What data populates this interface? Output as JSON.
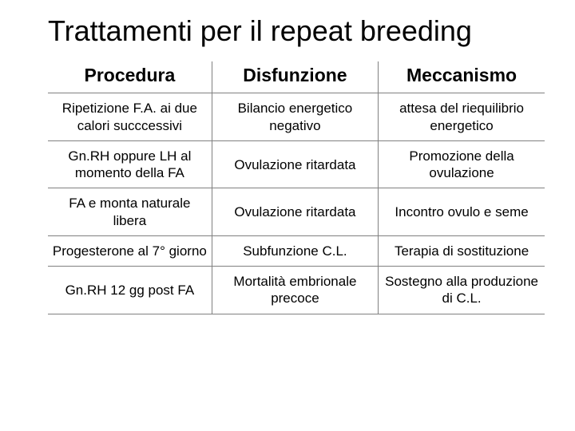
{
  "title": "Trattamenti per il repeat breeding",
  "table": {
    "columns": [
      "Procedura",
      "Disfunzione",
      "Meccanismo"
    ],
    "rows": [
      [
        "Ripetizione F.A. ai due calori succcessivi",
        "Bilancio energetico negativo",
        "attesa del riequilibrio energetico"
      ],
      [
        "Gn.RH oppure LH al momento della FA",
        "Ovulazione ritardata",
        "Promozione della ovulazione"
      ],
      [
        "FA e monta naturale libera",
        "Ovulazione ritardata",
        "Incontro ovulo e seme"
      ],
      [
        "Progesterone al 7° giorno",
        "Subfunzione  C.L.",
        "Terapia di sostituzione"
      ],
      [
        "Gn.RH 12 gg post FA",
        "Mortalità embrionale precoce",
        "Sostegno alla produzione di C.L."
      ]
    ],
    "header_fontsize": 23,
    "cell_fontsize": 17,
    "border_color": "#808080",
    "text_color": "#000000",
    "background_color": "#ffffff"
  }
}
